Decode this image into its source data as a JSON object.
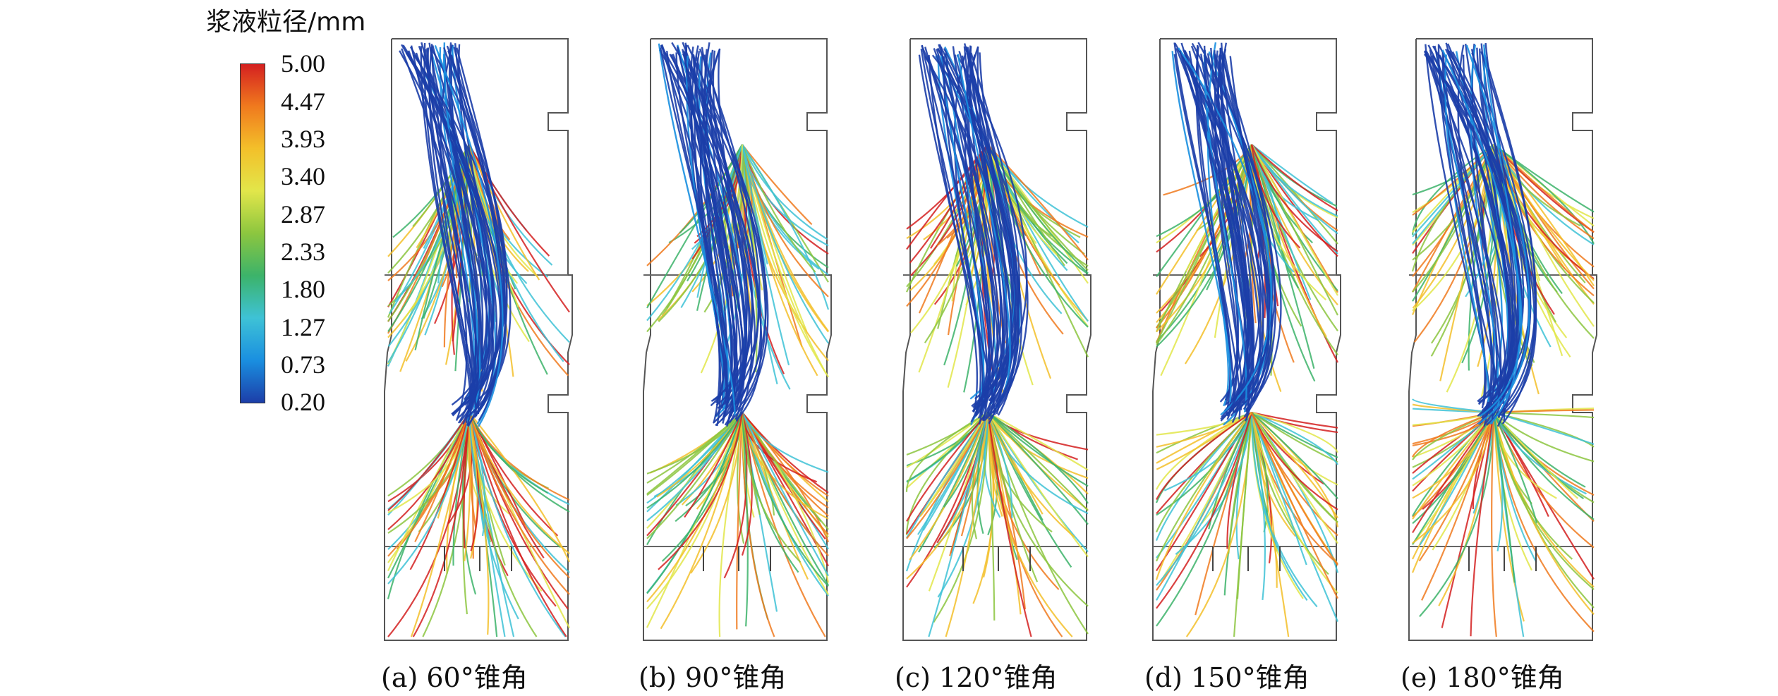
{
  "legend": {
    "title": "浆液粒径/mm",
    "colors": [
      "#d42020",
      "#f07a1e",
      "#f3c02a",
      "#e2e64a",
      "#8cc63f",
      "#3cb36a",
      "#3ec2d6",
      "#1a8fe0",
      "#1c3ea8"
    ],
    "ticks": [
      "5.00",
      "4.47",
      "3.93",
      "3.40",
      "2.87",
      "2.33",
      "1.80",
      "1.27",
      "0.73",
      "0.20"
    ]
  },
  "panels": [
    {
      "caption": "(a) 60°锥角",
      "cone_angle": 60
    },
    {
      "caption": "(b) 90°锥角",
      "cone_angle": 90
    },
    {
      "caption": "(c) 120°锥角",
      "cone_angle": 120
    },
    {
      "caption": "(d) 150°锥角",
      "cone_angle": 150
    },
    {
      "caption": "(e) 180°锥角",
      "cone_angle": 180
    }
  ]
}
